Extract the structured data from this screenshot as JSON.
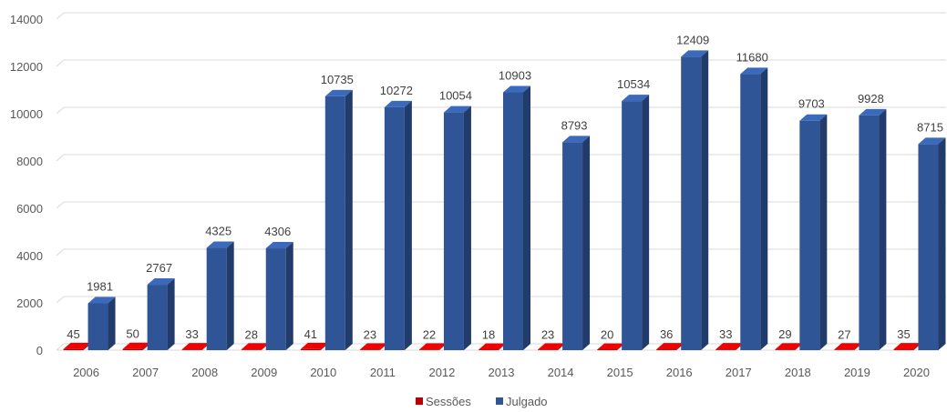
{
  "chart_data": {
    "type": "bar",
    "categories": [
      "2006",
      "2007",
      "2008",
      "2009",
      "2010",
      "2011",
      "2012",
      "2013",
      "2014",
      "2015",
      "2016",
      "2017",
      "2018",
      "2019",
      "2020"
    ],
    "series": [
      {
        "name": "Sessões",
        "values": [
          45,
          50,
          33,
          28,
          41,
          23,
          22,
          18,
          23,
          20,
          36,
          33,
          29,
          27,
          35
        ],
        "color": "#c00000"
      },
      {
        "name": "Julgado",
        "values": [
          1981,
          2767,
          4325,
          4306,
          10735,
          10272,
          10054,
          10903,
          8793,
          10534,
          12409,
          11680,
          9703,
          9928,
          8715
        ],
        "color": "#2f5597"
      }
    ],
    "yticks": [
      "0",
      "2000",
      "4000",
      "6000",
      "8000",
      "10000",
      "12000",
      "14000"
    ],
    "ylim": [
      0,
      14000
    ],
    "grid": true,
    "style": "3d-column",
    "legend_position": "bottom-center"
  }
}
